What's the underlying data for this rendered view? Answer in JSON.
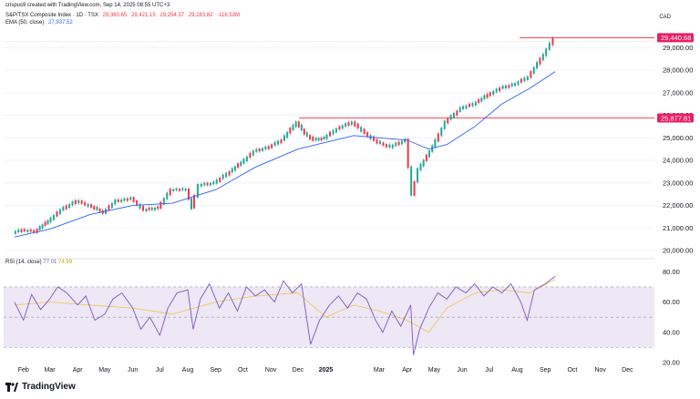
{
  "header": {
    "attribution": "crispus9 created with TradingView.com, Sep 14, 2025 08:55 UTC+3",
    "symbol": "S&P/TSX Composite Index · 1D · TSX",
    "ohlc": [
      "29,380.65",
      "29,421.15",
      "29,254.37",
      "29,283.82"
    ],
    "ohlc_colors": [
      "#f23645",
      "#f23645",
      "#f23645",
      "#f23645"
    ],
    "change": "-116.53M",
    "ema_label": "EMA (50, close)",
    "ema_value": "27,937.52",
    "currency": "CAD"
  },
  "rsi_header": {
    "label": "RSI (14, close)",
    "value1": "77.01",
    "value2": "74.99"
  },
  "footer": {
    "brand": "TradingView"
  },
  "colors": {
    "up": "#26a69a",
    "down": "#f23645",
    "ema": "#2962ff",
    "resistance": "#f23645",
    "rsi_line": "#7e57c2",
    "rsi_ma": "#f4c542",
    "rsi_band": "#ede7f6",
    "price_tag": "#e91e63"
  },
  "chart_data": [
    {
      "type": "line",
      "title": "S&P/TSX Composite Index · 1D · TSX",
      "xlabel": "",
      "ylabel": "",
      "ylim": [
        19800,
        29900
      ],
      "y_ticks": [
        "20,000.00",
        "21,000.00",
        "22,000.00",
        "23,000.00",
        "24,000.00",
        "25,000.00",
        "26,000.00",
        "27,000.00",
        "28,000.00",
        "29,000.00"
      ],
      "y_tick_values": [
        20000,
        21000,
        22000,
        23000,
        24000,
        25000,
        26000,
        27000,
        28000,
        29000
      ],
      "x_labels": [
        "Feb",
        "Mar",
        "Apr",
        "May",
        "Jun",
        "Jul",
        "Aug",
        "Sep",
        "Oct",
        "Nov",
        "Dec",
        "2025",
        "Mar",
        "Apr",
        "May",
        "Jun",
        "Jul",
        "Aug",
        "Sep",
        "Oct",
        "Nov",
        "Dec"
      ],
      "x_label_bold": "2025",
      "series": [
        {
          "name": "S&P/TSX Composite Index",
          "x": [
            "2024-01-22",
            "2024-02-01",
            "2024-02-15",
            "2024-03-01",
            "2024-03-15",
            "2024-04-01",
            "2024-04-15",
            "2024-05-01",
            "2024-05-15",
            "2024-06-01",
            "2024-06-15",
            "2024-07-01",
            "2024-07-15",
            "2024-08-01",
            "2024-08-07",
            "2024-08-15",
            "2024-09-01",
            "2024-09-15",
            "2024-10-01",
            "2024-10-15",
            "2024-11-01",
            "2024-11-15",
            "2024-12-01",
            "2024-12-10",
            "2024-12-20",
            "2025-01-01",
            "2025-01-15",
            "2025-02-01",
            "2025-02-15",
            "2025-03-01",
            "2025-03-15",
            "2025-04-01",
            "2025-04-08",
            "2025-04-15",
            "2025-05-01",
            "2025-05-15",
            "2025-06-01",
            "2025-06-15",
            "2025-07-01",
            "2025-07-15",
            "2025-08-01",
            "2025-08-15",
            "2025-09-01",
            "2025-09-12"
          ],
          "values": [
            20800,
            20900,
            20850,
            21300,
            21800,
            22200,
            22000,
            21700,
            22200,
            22300,
            21800,
            21900,
            22700,
            22700,
            21900,
            22900,
            23000,
            23400,
            23900,
            24400,
            24600,
            24900,
            25700,
            25200,
            24900,
            25000,
            25400,
            25700,
            25200,
            24800,
            24600,
            24900,
            22500,
            23600,
            24600,
            25700,
            26300,
            26500,
            26900,
            27200,
            27400,
            27700,
            28700,
            29400
          ]
        },
        {
          "name": "EMA (50, close)",
          "x": [
            "2024-01-22",
            "2024-03-01",
            "2024-04-15",
            "2024-06-01",
            "2024-07-15",
            "2024-09-01",
            "2024-10-15",
            "2024-12-01",
            "2025-01-01",
            "2025-02-01",
            "2025-03-01",
            "2025-04-01",
            "2025-04-25",
            "2025-05-15",
            "2025-06-15",
            "2025-07-15",
            "2025-08-15",
            "2025-09-12"
          ],
          "values": [
            20600,
            20950,
            21600,
            22000,
            22100,
            22700,
            23700,
            24500,
            24800,
            25100,
            25000,
            24900,
            24500,
            24700,
            25500,
            26500,
            27200,
            27937.52
          ]
        }
      ],
      "annotations": [
        {
          "label": "29,440.68",
          "value": 29440.68
        },
        {
          "label": "25,877.81",
          "value": 25877.81
        }
      ]
    },
    {
      "type": "line",
      "title": "RSI (14, close)",
      "ylim": [
        20,
        85
      ],
      "y_ticks": [
        "20.00",
        "40.00",
        "60.00",
        "80.00"
      ],
      "y_tick_values": [
        20,
        40,
        60,
        80
      ],
      "bands": [
        30,
        50,
        70
      ],
      "series": [
        {
          "name": "RSI (14, close)",
          "x": [
            "2024-01-22",
            "2024-02-01",
            "2024-02-10",
            "2024-02-20",
            "2024-03-01",
            "2024-03-10",
            "2024-03-20",
            "2024-04-01",
            "2024-04-10",
            "2024-04-20",
            "2024-05-01",
            "2024-05-10",
            "2024-05-20",
            "2024-06-01",
            "2024-06-10",
            "2024-06-20",
            "2024-07-01",
            "2024-07-10",
            "2024-07-20",
            "2024-08-01",
            "2024-08-07",
            "2024-08-15",
            "2024-08-25",
            "2024-09-05",
            "2024-09-15",
            "2024-09-25",
            "2024-10-05",
            "2024-10-15",
            "2024-10-25",
            "2024-11-05",
            "2024-11-15",
            "2024-11-25",
            "2024-12-05",
            "2024-12-15",
            "2024-12-25",
            "2025-01-05",
            "2025-01-15",
            "2025-01-25",
            "2025-02-05",
            "2025-02-15",
            "2025-02-25",
            "2025-03-05",
            "2025-03-15",
            "2025-03-25",
            "2025-04-05",
            "2025-04-08",
            "2025-04-15",
            "2025-04-25",
            "2025-05-05",
            "2025-05-15",
            "2025-05-25",
            "2025-06-05",
            "2025-06-15",
            "2025-06-25",
            "2025-07-05",
            "2025-07-15",
            "2025-07-25",
            "2025-08-05",
            "2025-08-12",
            "2025-08-20",
            "2025-09-01",
            "2025-09-12"
          ],
          "values": [
            60,
            48,
            65,
            55,
            62,
            70,
            66,
            58,
            64,
            48,
            52,
            62,
            66,
            56,
            42,
            50,
            38,
            56,
            66,
            68,
            42,
            62,
            72,
            56,
            66,
            54,
            70,
            64,
            68,
            60,
            74,
            66,
            72,
            32,
            48,
            58,
            64,
            56,
            66,
            62,
            48,
            40,
            54,
            44,
            58,
            25,
            42,
            56,
            66,
            62,
            70,
            66,
            72,
            64,
            70,
            66,
            72,
            60,
            48,
            68,
            72,
            77.01
          ]
        },
        {
          "name": "RSI-based MA",
          "x": [
            "2024-01-22",
            "2024-03-01",
            "2024-04-15",
            "2024-06-01",
            "2024-07-15",
            "2024-09-01",
            "2024-10-15",
            "2024-12-01",
            "2025-01-01",
            "2025-02-01",
            "2025-03-01",
            "2025-04-01",
            "2025-04-25",
            "2025-05-15",
            "2025-06-15",
            "2025-07-15",
            "2025-08-15",
            "2025-09-12"
          ],
          "values": [
            58,
            60,
            58,
            56,
            52,
            60,
            64,
            66,
            50,
            58,
            54,
            48,
            40,
            56,
            66,
            68,
            66,
            74.99
          ]
        }
      ]
    }
  ]
}
